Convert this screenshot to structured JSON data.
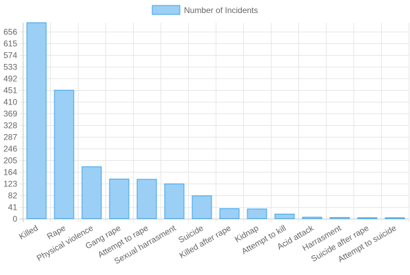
{
  "chart_data": {
    "type": "bar",
    "legend": {
      "label": "Number of Incidents",
      "position": "top"
    },
    "categories": [
      "Killed",
      "Rape",
      "Physical violence",
      "Gang rape",
      "Attempt to rape",
      "Sexual harrasment",
      "Suicide",
      "Killed after rape",
      "Kidnap",
      "Attempt to kill",
      "Acid attack",
      "Harrasment",
      "Suicide after rape",
      "Attempt to suicide"
    ],
    "values": [
      688,
      451,
      182,
      139,
      138,
      122,
      80,
      35,
      34,
      16,
      5,
      4,
      3,
      3
    ],
    "yticks": [
      0,
      41,
      82,
      123,
      164,
      205,
      246,
      287,
      328,
      369,
      410,
      451,
      492,
      533,
      574,
      615,
      656
    ],
    "ylim": [
      0,
      688
    ],
    "grid": true,
    "colors": {
      "bar_fill": "#9ccff5",
      "bar_stroke": "#36a2eb",
      "grid": "#e6e6e6",
      "axis": "#c8c8c8",
      "text": "#666666"
    }
  }
}
